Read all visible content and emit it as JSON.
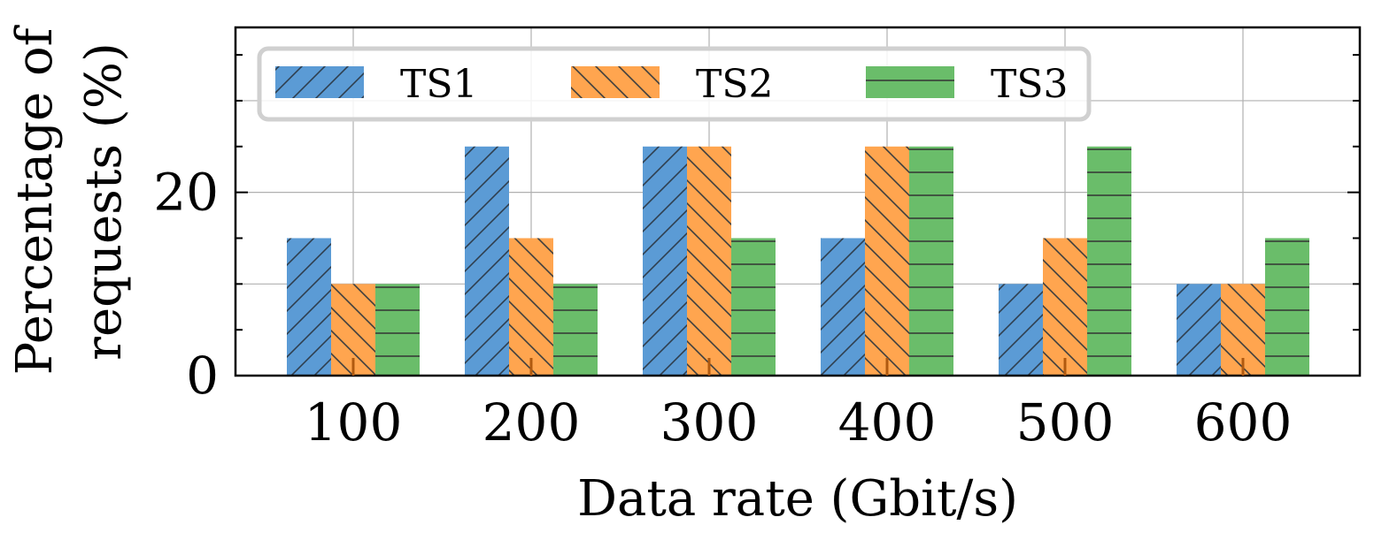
{
  "chart_data": {
    "type": "bar",
    "categories": [
      "100",
      "200",
      "300",
      "400",
      "500",
      "600"
    ],
    "series": [
      {
        "name": "TS1",
        "values": [
          15,
          25,
          25,
          15,
          10,
          10
        ],
        "color": "#5b9bd5",
        "hatch": "diagonal-forward"
      },
      {
        "name": "TS2",
        "values": [
          10,
          15,
          25,
          25,
          15,
          10
        ],
        "color": "#ffa54f",
        "hatch": "diagonal-back"
      },
      {
        "name": "TS3",
        "values": [
          10,
          10,
          15,
          25,
          25,
          15
        ],
        "color": "#6abd6a",
        "hatch": "horizontal"
      }
    ],
    "xlabel": "Data rate (Gbit/s)",
    "ylabel_line1": "Percentage of",
    "ylabel_line2": "requests (%)",
    "yticks": [
      "0",
      "20"
    ],
    "ylim": [
      0,
      38
    ],
    "grid": true,
    "legend_position": "top-left"
  }
}
